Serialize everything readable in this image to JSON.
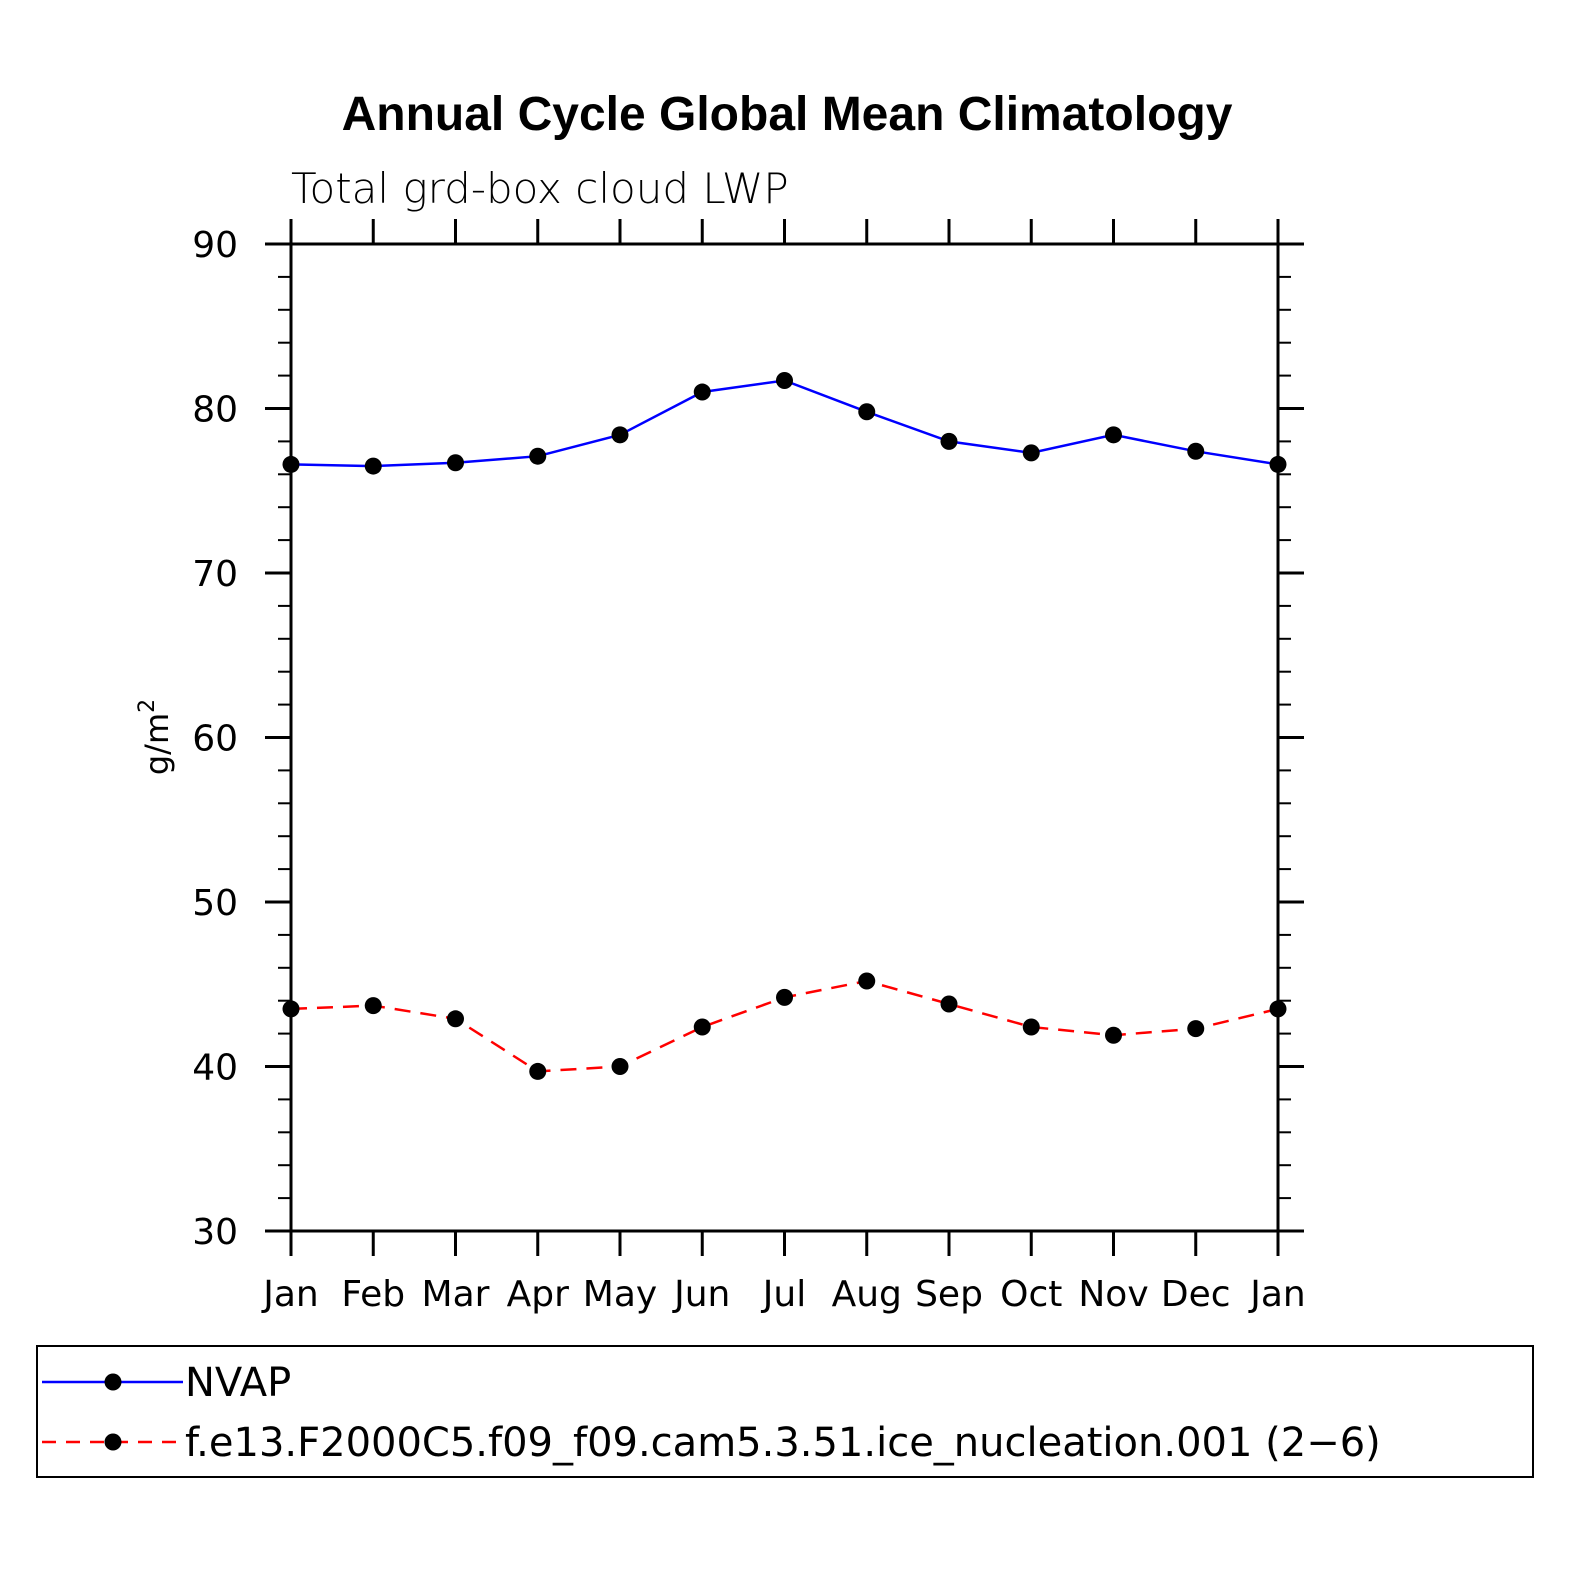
{
  "chart_data": {
    "type": "line",
    "title": "Annual Cycle Global Mean Climatology",
    "subtitle": "Total grd-box cloud LWP",
    "ylabel": "g/m",
    "ylabel_sup": "2",
    "xlabel": "",
    "categories": [
      "Jan",
      "Feb",
      "Mar",
      "Apr",
      "May",
      "Jun",
      "Jul",
      "Aug",
      "Sep",
      "Oct",
      "Nov",
      "Dec",
      "Jan"
    ],
    "ylim": [
      30,
      90
    ],
    "yticks": [
      30,
      40,
      50,
      60,
      70,
      80,
      90
    ],
    "series": [
      {
        "name": "NVAP",
        "color": "#0000ff",
        "dash": "solid",
        "values": [
          76.6,
          76.5,
          76.7,
          77.1,
          78.4,
          81.0,
          81.7,
          79.8,
          78.0,
          77.3,
          78.4,
          77.4,
          76.6
        ]
      },
      {
        "name": "f.e13.F2000C5.f09_f09.cam5.3.51.ice_nucleation.001 (2−6)",
        "color": "#ff0000",
        "dash": "dashed",
        "values": [
          43.5,
          43.7,
          42.9,
          39.7,
          40.0,
          42.4,
          44.2,
          45.2,
          43.8,
          42.4,
          41.9,
          42.3,
          43.5
        ]
      }
    ],
    "legend_position": "bottom"
  }
}
